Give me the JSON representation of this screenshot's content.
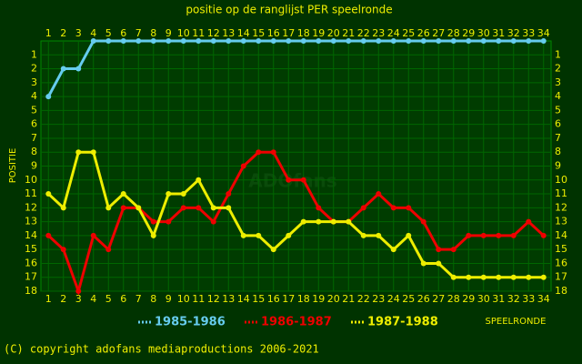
{
  "chart_data": {
    "type": "line",
    "title": "positie op de ranglijst PER speelronde",
    "y_label": "POSITIE",
    "x_label": "SPEELRONDE",
    "watermark": "ADOfans",
    "footer": "(C) copyright adofans mediaproductions 2006-2021",
    "x": [
      1,
      2,
      3,
      4,
      5,
      6,
      7,
      8,
      9,
      10,
      11,
      12,
      13,
      14,
      15,
      16,
      17,
      18,
      19,
      20,
      21,
      22,
      23,
      24,
      25,
      26,
      27,
      28,
      29,
      30,
      31,
      32,
      33,
      34
    ],
    "xlim": [
      0.5,
      34.5
    ],
    "xticks": [
      1,
      2,
      3,
      4,
      5,
      6,
      7,
      8,
      9,
      10,
      11,
      12,
      13,
      14,
      15,
      16,
      17,
      18,
      19,
      20,
      21,
      22,
      23,
      24,
      25,
      26,
      27,
      28,
      29,
      30,
      31,
      32,
      33,
      34
    ],
    "ylim": [
      0,
      18
    ],
    "y_inverted": true,
    "yticks": [
      1,
      2,
      3,
      4,
      5,
      6,
      7,
      8,
      9,
      10,
      11,
      12,
      13,
      14,
      15,
      16,
      17,
      18
    ],
    "grid": true,
    "series": [
      {
        "name": "1985-1986",
        "color": "#66ccee",
        "values": [
          4,
          2,
          2,
          0,
          0,
          0,
          0,
          0,
          0,
          0,
          0,
          0,
          0,
          0,
          0,
          0,
          0,
          0,
          0,
          0,
          0,
          0,
          0,
          0,
          0,
          0,
          0,
          0,
          0,
          0,
          0,
          0,
          0,
          0
        ]
      },
      {
        "name": "1986-1987",
        "color": "#ee0000",
        "values": [
          14,
          15,
          18,
          14,
          15,
          12,
          12,
          13,
          13,
          12,
          12,
          13,
          11,
          9,
          8,
          8,
          10,
          10,
          12,
          13,
          13,
          12,
          11,
          12,
          12,
          13,
          15,
          15,
          14,
          14,
          14,
          14,
          13,
          14
        ]
      },
      {
        "name": "1987-1988",
        "color": "#eeee00",
        "values": [
          11,
          12,
          8,
          8,
          12,
          11,
          12,
          14,
          11,
          11,
          10,
          12,
          12,
          14,
          14,
          15,
          14,
          13,
          13,
          13,
          13,
          14,
          14,
          15,
          14,
          16,
          16,
          17,
          17,
          17,
          17,
          17,
          17,
          17
        ]
      }
    ]
  }
}
